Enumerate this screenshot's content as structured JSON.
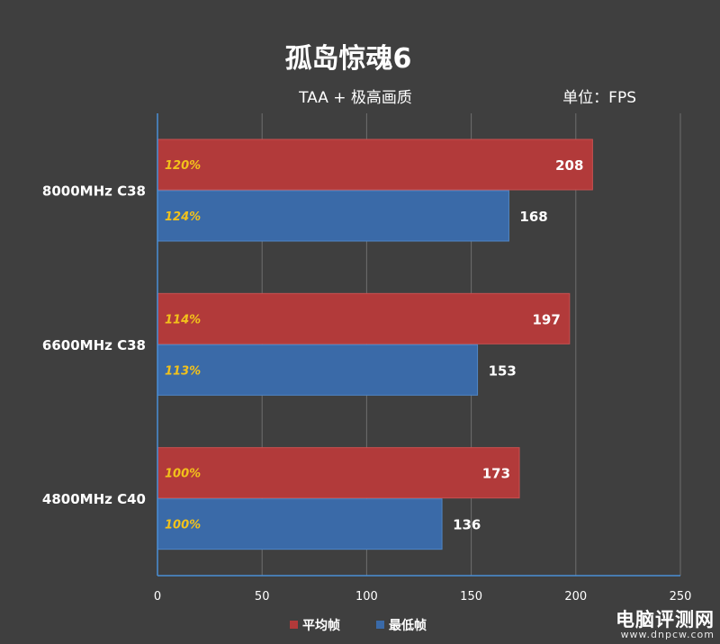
{
  "chart_data": {
    "type": "bar",
    "orientation": "horizontal",
    "title": "孤岛惊魂6",
    "subtitle": "TAA + 极高画质",
    "unit_label": "单位：FPS",
    "categories": [
      "8000MHz C38",
      "6600MHz C38",
      "4800MHz C40"
    ],
    "series": [
      {
        "name": "平均帧",
        "color": "#b23a3a",
        "values": [
          208,
          197,
          173
        ],
        "percent_labels": [
          "120%",
          "114%",
          "100%"
        ]
      },
      {
        "name": "最低帧",
        "color": "#3a6aa8",
        "values": [
          168,
          153,
          136
        ],
        "percent_labels": [
          "124%",
          "113%",
          "100%"
        ]
      }
    ],
    "xlim": [
      0,
      250
    ],
    "x_ticks": [
      0,
      50,
      100,
      150,
      200,
      250
    ],
    "grid": true,
    "legend_position": "bottom-center"
  },
  "colors": {
    "background": "#3f3f3f",
    "axis": "#4a8fd6",
    "grid": "#6e6e6e",
    "percent_text": "#f2c21b",
    "text": "#ffffff"
  },
  "watermark": {
    "main": "电脑评测网",
    "sub": "www.dnpcw.com"
  }
}
